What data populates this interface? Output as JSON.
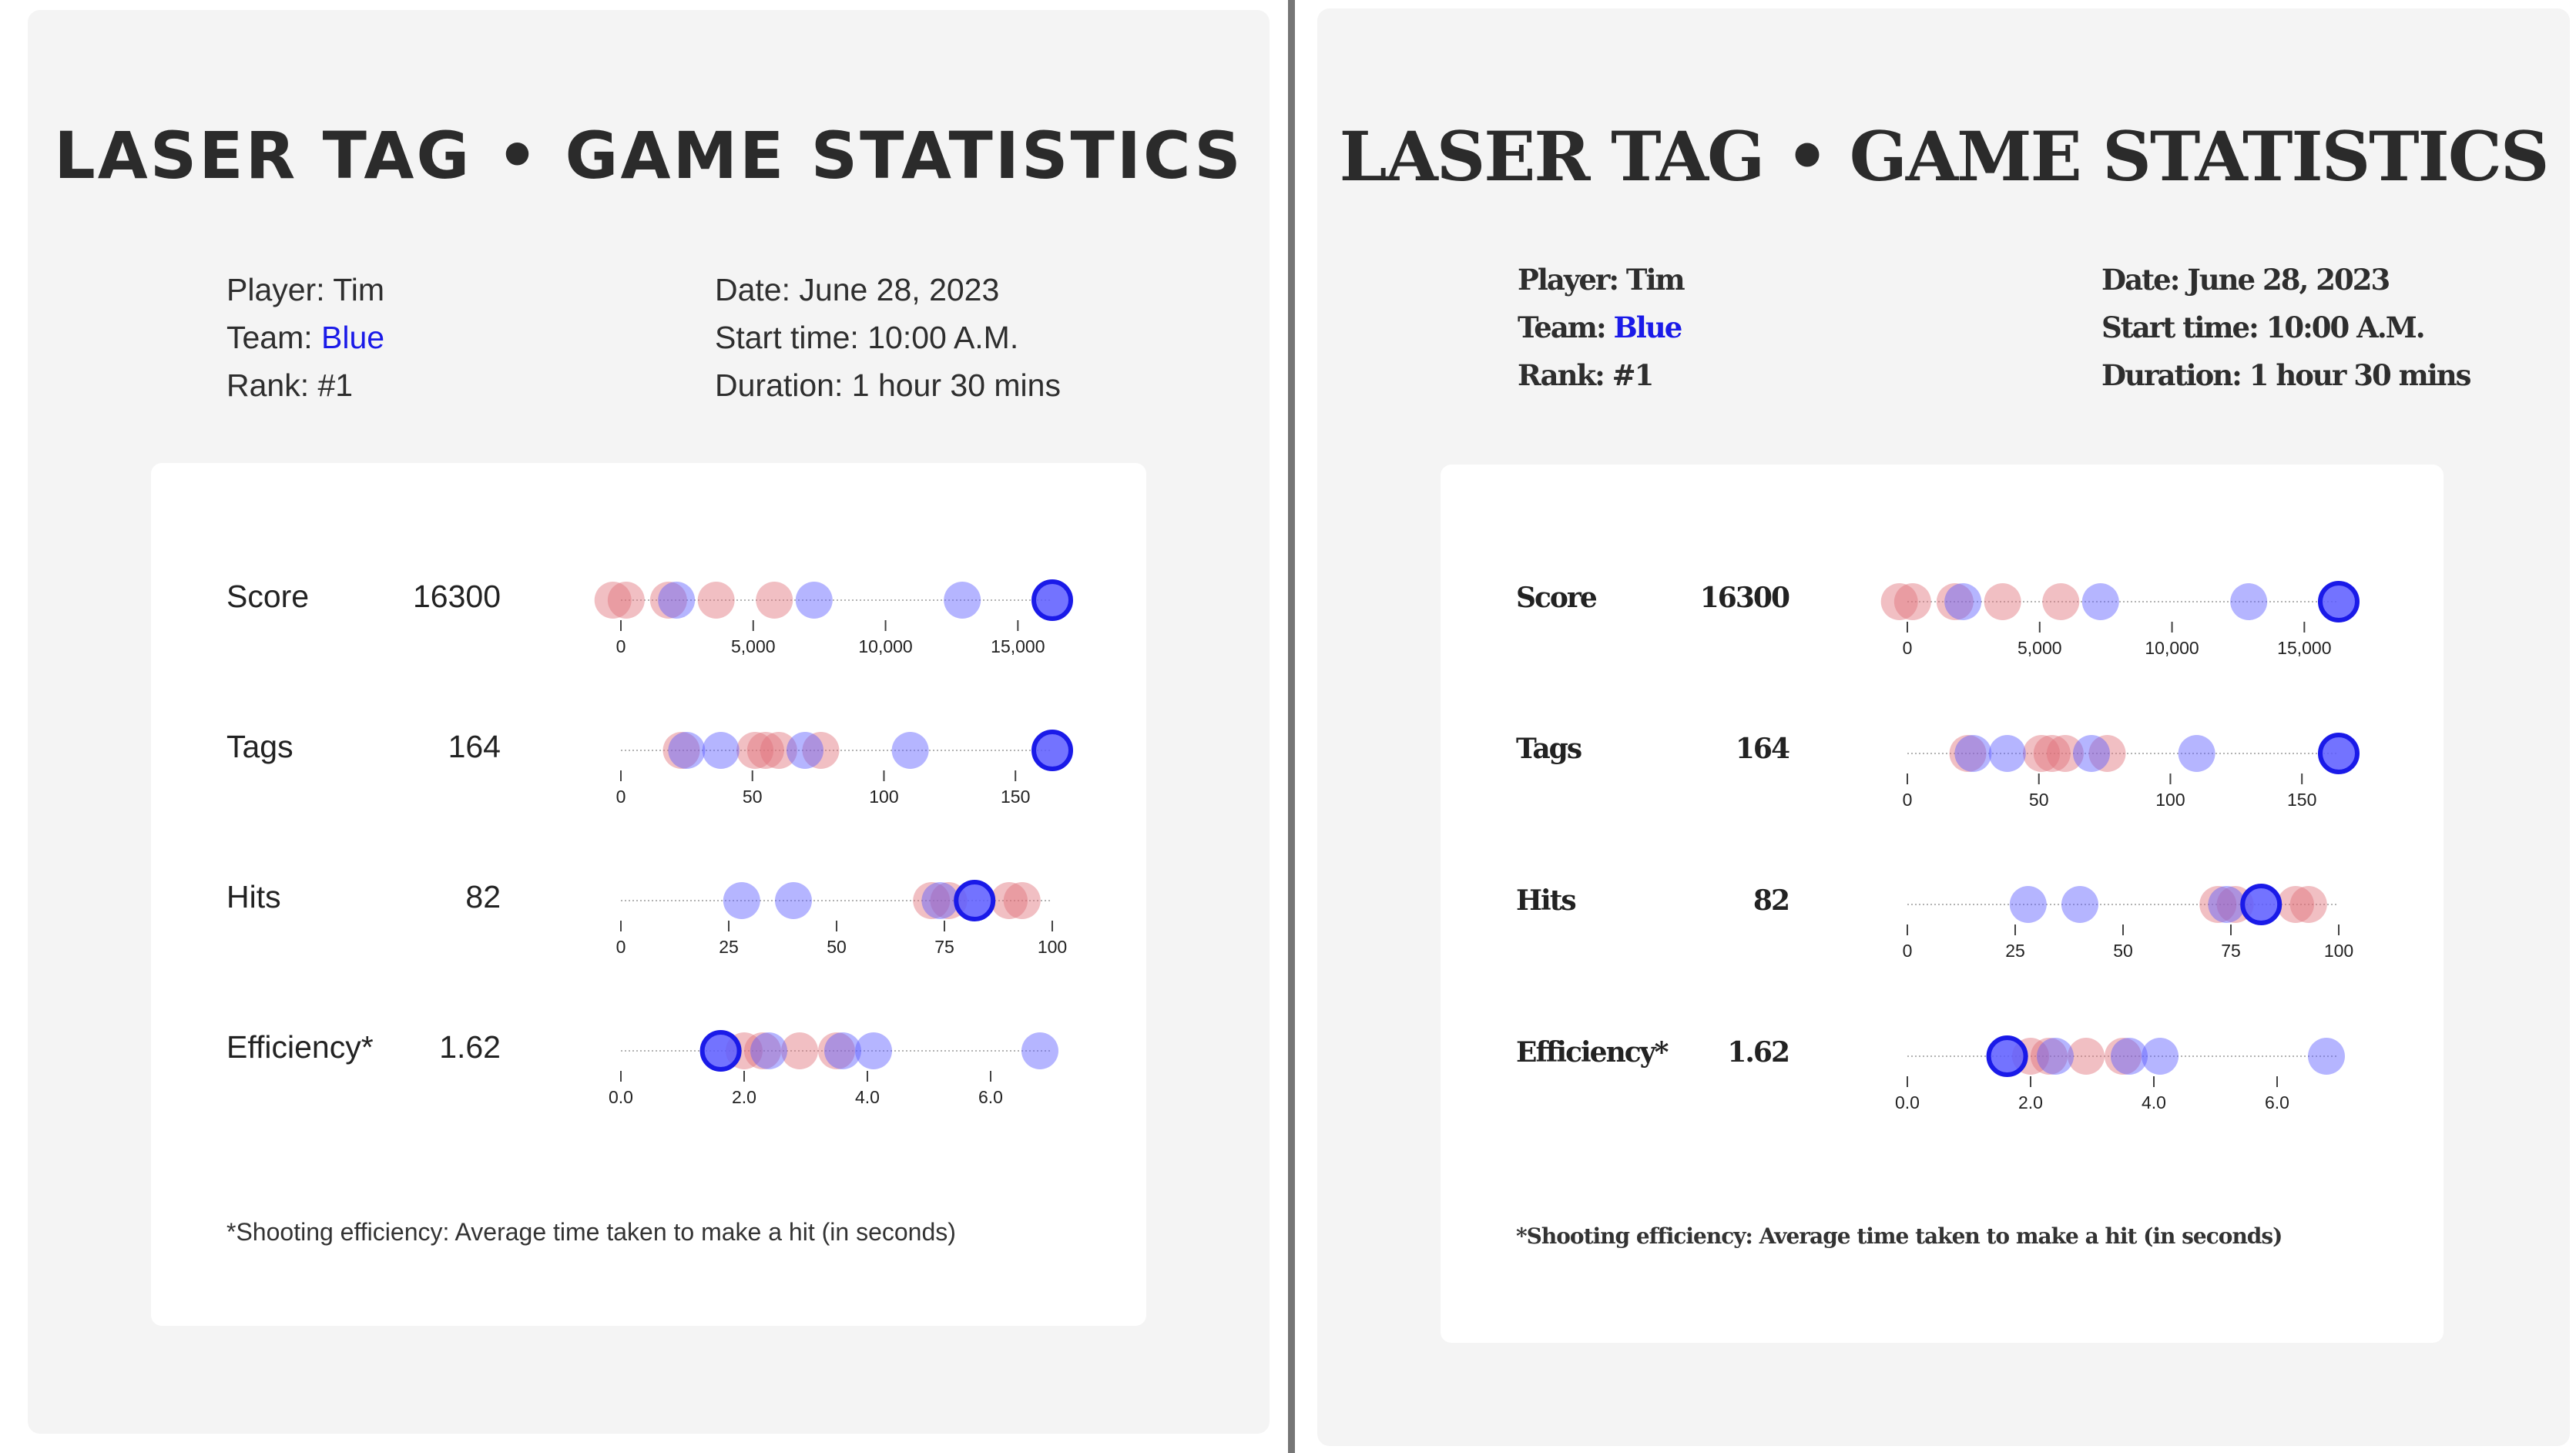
{
  "panels": [
    {
      "title": "LASER TAG • GAME STATISTICS",
      "player_label": "Player: Tim",
      "team_prefix": "Team: ",
      "team_value": "Blue",
      "rank_label": "Rank: #1",
      "date_label": "Date: June 28, 2023",
      "start_label": "Start time: 10:00 A.M.",
      "duration_label": "Duration: 1 hour 30 mins",
      "footnote": "*Shooting efficiency: Average time taken to make a hit (in seconds)"
    },
    {
      "title": "LASER TAG • GAME STATISTICS",
      "player_label": "Player: Tim",
      "team_prefix": "Team: ",
      "team_value": "Blue",
      "rank_label": "Rank: #1",
      "date_label": "Date: June 28, 2023",
      "start_label": "Start time: 10:00 A.M.",
      "duration_label": "Duration: 1 hour 30 mins",
      "footnote": "*Shooting efficiency: Average time taken to make a hit (in seconds)"
    }
  ],
  "colors": {
    "team_blue": "#1a1ae8",
    "blue_dot": "#5b5bff",
    "red_dot": "#e0707a",
    "axis": "#9a9a9a"
  },
  "chart_data": [
    {
      "type": "scatter",
      "label": "Score",
      "player_value": "16300",
      "xlim": [
        0,
        16300
      ],
      "ticks": [
        0,
        5000,
        10000,
        15000
      ],
      "tick_labels": [
        "0",
        "5,000",
        "10,000",
        "15,000"
      ],
      "highlight": 16300,
      "blue": [
        2100,
        7300,
        12900
      ],
      "red": [
        -300,
        200,
        1800,
        3600,
        5800
      ]
    },
    {
      "type": "scatter",
      "label": "Tags",
      "player_value": "164",
      "xlim": [
        0,
        164
      ],
      "ticks": [
        0,
        50,
        100,
        150
      ],
      "tick_labels": [
        "0",
        "50",
        "100",
        "150"
      ],
      "highlight": 164,
      "blue": [
        25,
        38,
        70,
        110
      ],
      "red": [
        23,
        51,
        55,
        60,
        76
      ]
    },
    {
      "type": "scatter",
      "label": "Hits",
      "player_value": "82",
      "xlim": [
        0,
        100
      ],
      "ticks": [
        0,
        25,
        50,
        75,
        100
      ],
      "tick_labels": [
        "0",
        "25",
        "50",
        "75",
        "100"
      ],
      "highlight": 82,
      "blue": [
        28,
        40,
        74
      ],
      "red": [
        72,
        76,
        90,
        93
      ]
    },
    {
      "type": "scatter",
      "label": "Efficiency*",
      "player_value": "1.62",
      "xlim": [
        0,
        7
      ],
      "ticks": [
        0,
        2,
        4,
        6
      ],
      "tick_labels": [
        "0.0",
        "2.0",
        "4.0",
        "6.0"
      ],
      "highlight": 1.62,
      "blue": [
        2.4,
        3.6,
        4.1,
        6.8
      ],
      "red": [
        2.0,
        2.3,
        2.9,
        3.5
      ]
    }
  ]
}
